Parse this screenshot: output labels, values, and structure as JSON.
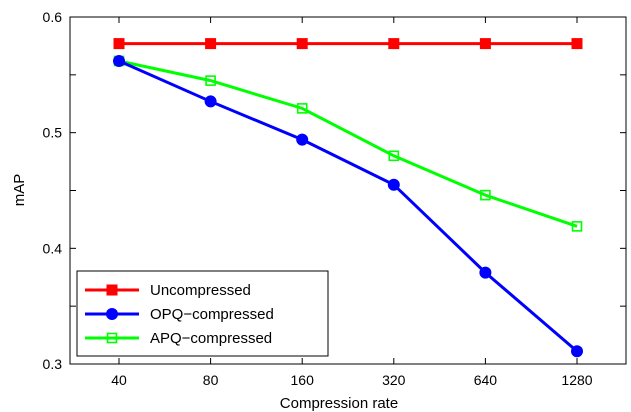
{
  "chart_data": {
    "type": "line",
    "categories": [
      "40",
      "80",
      "160",
      "320",
      "640",
      "1280"
    ],
    "xlabel": "Compression rate",
    "ylabel": "mAP",
    "ylim": [
      0.3,
      0.6
    ],
    "yticks": [
      "0.3",
      "0.4",
      "0.5",
      "0.6"
    ],
    "grid": false,
    "legend_position": "bottom-left",
    "series": [
      {
        "name": "Uncompressed",
        "color": "#ff0000",
        "marker": "filled-square",
        "values": [
          0.577,
          0.577,
          0.577,
          0.577,
          0.577,
          0.577
        ]
      },
      {
        "name": "OPQ−compressed",
        "color": "#0000ff",
        "marker": "filled-circle",
        "values": [
          0.562,
          0.527,
          0.494,
          0.455,
          0.379,
          0.311
        ]
      },
      {
        "name": "APQ−compressed",
        "color": "#00ff00",
        "marker": "open-square",
        "values": [
          0.562,
          0.545,
          0.521,
          0.48,
          0.446,
          0.419
        ]
      }
    ]
  }
}
